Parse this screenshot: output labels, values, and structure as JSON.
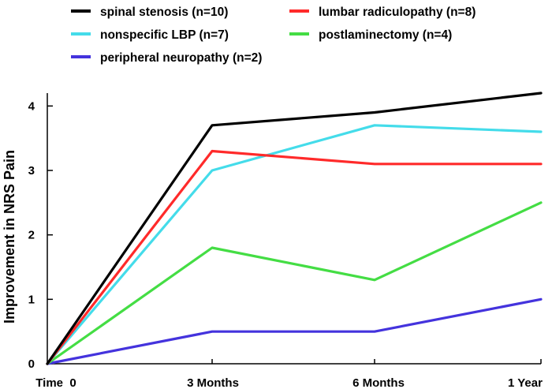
{
  "chart_data": {
    "type": "line",
    "title": "",
    "xlabel": "",
    "ylabel": "Improvement in NRS Pain",
    "categories": [
      "Time  0",
      "3 Months",
      "6 Months",
      "1 Year"
    ],
    "ylim": [
      0,
      4.2
    ],
    "yticks": [
      "0",
      "1",
      "2",
      "3",
      "4"
    ],
    "grid": false,
    "legend_position": "top",
    "series": [
      {
        "name": "spinal stenosis (n=10)",
        "color": "#000000",
        "values": [
          0,
          3.7,
          3.9,
          4.2
        ]
      },
      {
        "name": "lumbar radiculopathy (n=8)",
        "color": "#ff2a2a",
        "values": [
          0,
          3.3,
          3.1,
          3.1
        ]
      },
      {
        "name": "nonspecific LBP (n=7)",
        "color": "#44dcea",
        "values": [
          0,
          3.0,
          3.7,
          3.6
        ]
      },
      {
        "name": "postlaminectomy (n=4)",
        "color": "#44dd44",
        "values": [
          0,
          1.8,
          1.3,
          2.5
        ]
      },
      {
        "name": "peripheral neuropathy (n=2)",
        "color": "#4433dd",
        "values": [
          0,
          0.5,
          0.5,
          1.0
        ]
      }
    ]
  }
}
